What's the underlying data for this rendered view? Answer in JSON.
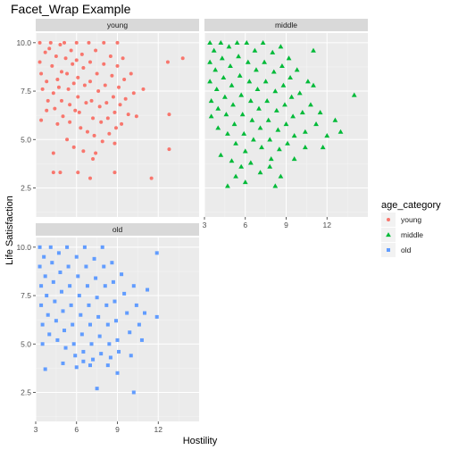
{
  "chart_data": {
    "type": "scatter",
    "title": "Facet_Wrap Example",
    "xlabel": "Hostility",
    "ylabel": "Life Satisfaction",
    "xlim": [
      3,
      15
    ],
    "ylim": [
      1,
      10.5
    ],
    "x_ticks": [
      3,
      6,
      9,
      12
    ],
    "y_ticks": [
      2.5,
      5.0,
      7.5,
      10.0
    ],
    "y_tick_labels": [
      "2.5",
      "5.0",
      "7.5",
      "10.0"
    ],
    "grid": true,
    "legend": {
      "title": "age_category",
      "placement": "right",
      "entries": [
        {
          "name": "young",
          "color": "#F8766D",
          "shape": "circle"
        },
        {
          "name": "middle",
          "color": "#00BA38",
          "shape": "triangle"
        },
        {
          "name": "old",
          "color": "#619CFF",
          "shape": "square"
        }
      ]
    },
    "facets": [
      {
        "name": "young",
        "color": "#F8766D",
        "shape": "circle",
        "points": [
          [
            3.3,
            10.0
          ],
          [
            3.3,
            9.0
          ],
          [
            3.4,
            8.4
          ],
          [
            3.5,
            7.6
          ],
          [
            3.4,
            6.0
          ],
          [
            3.7,
            9.5
          ],
          [
            3.8,
            8.0
          ],
          [
            3.9,
            7.0
          ],
          [
            4.0,
            9.7
          ],
          [
            4.1,
            10.0
          ],
          [
            4.2,
            8.8
          ],
          [
            4.3,
            7.4
          ],
          [
            4.4,
            6.6
          ],
          [
            4.5,
            9.3
          ],
          [
            4.6,
            8.1
          ],
          [
            4.7,
            7.7
          ],
          [
            4.8,
            9.9
          ],
          [
            4.9,
            8.5
          ],
          [
            4.9,
            7.0
          ],
          [
            5.0,
            6.2
          ],
          [
            5.1,
            10.0
          ],
          [
            5.2,
            9.2
          ],
          [
            5.3,
            8.4
          ],
          [
            5.4,
            7.6
          ],
          [
            5.5,
            6.8
          ],
          [
            5.5,
            5.9
          ],
          [
            5.6,
            9.6
          ],
          [
            5.7,
            8.9
          ],
          [
            5.8,
            7.9
          ],
          [
            5.9,
            6.5
          ],
          [
            6.0,
            10.0
          ],
          [
            6.0,
            9.1
          ],
          [
            6.1,
            8.2
          ],
          [
            6.1,
            7.2
          ],
          [
            6.2,
            6.4
          ],
          [
            6.3,
            5.6
          ],
          [
            6.4,
            9.4
          ],
          [
            6.5,
            8.7
          ],
          [
            6.6,
            7.8
          ],
          [
            6.7,
            6.9
          ],
          [
            6.8,
            5.4
          ],
          [
            6.9,
            10.0
          ],
          [
            7.0,
            9.0
          ],
          [
            7.0,
            8.0
          ],
          [
            7.1,
            7.0
          ],
          [
            7.2,
            6.1
          ],
          [
            7.3,
            5.2
          ],
          [
            7.4,
            9.6
          ],
          [
            7.5,
            8.4
          ],
          [
            7.6,
            7.5
          ],
          [
            7.7,
            6.7
          ],
          [
            7.8,
            5.9
          ],
          [
            7.9,
            4.9
          ],
          [
            8.0,
            10.0
          ],
          [
            8.0,
            8.9
          ],
          [
            8.1,
            7.8
          ],
          [
            8.2,
            6.9
          ],
          [
            8.3,
            6.1
          ],
          [
            8.4,
            5.3
          ],
          [
            8.5,
            9.3
          ],
          [
            8.6,
            8.3
          ],
          [
            8.7,
            7.2
          ],
          [
            8.8,
            6.4
          ],
          [
            8.9,
            5.6
          ],
          [
            9.0,
            10.0
          ],
          [
            9.0,
            8.8
          ],
          [
            9.1,
            7.7
          ],
          [
            9.2,
            6.8
          ],
          [
            9.3,
            5.8
          ],
          [
            9.4,
            9.2
          ],
          [
            9.5,
            8.1
          ],
          [
            9.6,
            7.1
          ],
          [
            9.8,
            6.3
          ],
          [
            10.0,
            8.4
          ],
          [
            10.2,
            7.4
          ],
          [
            10.4,
            6.2
          ],
          [
            10.9,
            7.6
          ],
          [
            12.7,
            9.0
          ],
          [
            13.8,
            9.2
          ],
          [
            3.8,
            6.5
          ],
          [
            4.6,
            5.8
          ],
          [
            5.3,
            5.0
          ],
          [
            6.5,
            4.4
          ],
          [
            7.2,
            4.0
          ],
          [
            4.3,
            4.3
          ],
          [
            5.8,
            4.6
          ],
          [
            7.4,
            4.3
          ],
          [
            8.8,
            4.8
          ],
          [
            4.3,
            3.3
          ],
          [
            4.8,
            3.3
          ],
          [
            6.1,
            3.3
          ],
          [
            7.0,
            3.0
          ],
          [
            8.8,
            3.3
          ],
          [
            11.5,
            3.0
          ],
          [
            12.8,
            4.5
          ],
          [
            12.8,
            6.3
          ]
        ]
      },
      {
        "name": "middle",
        "color": "#00BA38",
        "shape": "triangle",
        "points": [
          [
            3.4,
            10.0
          ],
          [
            3.4,
            9.0
          ],
          [
            3.4,
            8.0
          ],
          [
            3.5,
            7.0
          ],
          [
            3.5,
            6.2
          ],
          [
            3.7,
            9.6
          ],
          [
            3.8,
            8.6
          ],
          [
            3.9,
            7.6
          ],
          [
            4.0,
            6.6
          ],
          [
            4.0,
            5.6
          ],
          [
            4.2,
            10.0
          ],
          [
            4.3,
            9.2
          ],
          [
            4.4,
            8.2
          ],
          [
            4.5,
            7.2
          ],
          [
            4.6,
            6.3
          ],
          [
            4.7,
            5.3
          ],
          [
            4.8,
            9.8
          ],
          [
            4.9,
            8.8
          ],
          [
            5.0,
            7.8
          ],
          [
            5.1,
            6.8
          ],
          [
            5.2,
            5.8
          ],
          [
            5.3,
            4.8
          ],
          [
            5.4,
            10.0
          ],
          [
            5.5,
            9.3
          ],
          [
            5.6,
            8.3
          ],
          [
            5.7,
            7.3
          ],
          [
            5.8,
            6.3
          ],
          [
            5.9,
            5.3
          ],
          [
            6.0,
            4.4
          ],
          [
            6.1,
            10.0
          ],
          [
            6.2,
            9.0
          ],
          [
            6.3,
            8.0
          ],
          [
            6.4,
            7.0
          ],
          [
            6.5,
            6.0
          ],
          [
            6.6,
            5.0
          ],
          [
            6.7,
            9.6
          ],
          [
            6.8,
            8.6
          ],
          [
            6.9,
            7.6
          ],
          [
            7.0,
            6.6
          ],
          [
            7.1,
            5.6
          ],
          [
            7.2,
            4.6
          ],
          [
            7.3,
            10.0
          ],
          [
            7.4,
            9.0
          ],
          [
            7.5,
            8.0
          ],
          [
            7.6,
            7.0
          ],
          [
            7.7,
            6.0
          ],
          [
            7.8,
            5.0
          ],
          [
            7.9,
            4.0
          ],
          [
            8.0,
            9.5
          ],
          [
            8.1,
            8.5
          ],
          [
            8.2,
            7.5
          ],
          [
            8.3,
            6.5
          ],
          [
            8.4,
            5.5
          ],
          [
            8.5,
            4.5
          ],
          [
            8.6,
            9.8
          ],
          [
            8.7,
            8.8
          ],
          [
            8.8,
            7.8
          ],
          [
            8.9,
            6.8
          ],
          [
            9.0,
            5.8
          ],
          [
            9.1,
            4.8
          ],
          [
            9.2,
            9.2
          ],
          [
            9.3,
            8.2
          ],
          [
            9.4,
            7.2
          ],
          [
            9.5,
            6.2
          ],
          [
            9.6,
            5.2
          ],
          [
            9.8,
            8.6
          ],
          [
            10.0,
            7.4
          ],
          [
            10.2,
            6.4
          ],
          [
            10.4,
            5.4
          ],
          [
            10.6,
            8.0
          ],
          [
            10.8,
            6.8
          ],
          [
            11.0,
            7.8
          ],
          [
            11.2,
            5.8
          ],
          [
            11.5,
            6.4
          ],
          [
            12.0,
            5.2
          ],
          [
            12.6,
            6.0
          ],
          [
            13.0,
            5.4
          ],
          [
            14.0,
            7.3
          ],
          [
            11.0,
            9.6
          ],
          [
            9.6,
            4.0
          ],
          [
            10.4,
            4.6
          ],
          [
            11.7,
            4.6
          ],
          [
            4.2,
            4.2
          ],
          [
            5.0,
            3.9
          ],
          [
            5.7,
            3.6
          ],
          [
            6.4,
            3.8
          ],
          [
            7.1,
            3.3
          ],
          [
            7.8,
            3.6
          ],
          [
            5.3,
            3.1
          ],
          [
            8.6,
            3.1
          ],
          [
            4.7,
            2.6
          ],
          [
            6.0,
            2.8
          ],
          [
            8.2,
            2.6
          ]
        ]
      },
      {
        "name": "old",
        "color": "#619CFF",
        "shape": "square",
        "points": [
          [
            3.3,
            10.0
          ],
          [
            3.3,
            9.0
          ],
          [
            3.4,
            8.0
          ],
          [
            3.4,
            7.0
          ],
          [
            3.5,
            6.0
          ],
          [
            3.5,
            5.0
          ],
          [
            3.6,
            9.5
          ],
          [
            3.7,
            8.5
          ],
          [
            3.8,
            7.5
          ],
          [
            3.9,
            6.5
          ],
          [
            4.0,
            5.5
          ],
          [
            4.1,
            10.0
          ],
          [
            4.2,
            9.2
          ],
          [
            4.3,
            8.2
          ],
          [
            4.4,
            7.2
          ],
          [
            4.5,
            6.2
          ],
          [
            4.6,
            5.2
          ],
          [
            4.7,
            9.7
          ],
          [
            4.8,
            8.7
          ],
          [
            4.9,
            7.7
          ],
          [
            5.0,
            6.7
          ],
          [
            5.1,
            5.7
          ],
          [
            5.2,
            4.8
          ],
          [
            5.3,
            10.0
          ],
          [
            5.4,
            9.0
          ],
          [
            5.5,
            8.0
          ],
          [
            5.6,
            7.0
          ],
          [
            5.7,
            6.0
          ],
          [
            5.8,
            5.0
          ],
          [
            5.9,
            4.4
          ],
          [
            6.0,
            9.5
          ],
          [
            6.1,
            8.5
          ],
          [
            6.2,
            7.5
          ],
          [
            6.3,
            6.5
          ],
          [
            6.4,
            5.5
          ],
          [
            6.5,
            4.6
          ],
          [
            6.6,
            10.0
          ],
          [
            6.7,
            9.0
          ],
          [
            6.8,
            8.0
          ],
          [
            6.9,
            7.0
          ],
          [
            7.0,
            6.0
          ],
          [
            7.1,
            5.0
          ],
          [
            7.2,
            4.2
          ],
          [
            7.3,
            9.4
          ],
          [
            7.4,
            8.4
          ],
          [
            7.5,
            7.4
          ],
          [
            7.6,
            6.4
          ],
          [
            7.7,
            5.4
          ],
          [
            7.8,
            4.5
          ],
          [
            7.9,
            10.0
          ],
          [
            8.0,
            9.0
          ],
          [
            8.1,
            8.0
          ],
          [
            8.2,
            7.0
          ],
          [
            8.3,
            6.0
          ],
          [
            8.4,
            5.0
          ],
          [
            8.5,
            4.3
          ],
          [
            8.6,
            9.2
          ],
          [
            8.7,
            8.2
          ],
          [
            8.8,
            7.2
          ],
          [
            8.9,
            6.2
          ],
          [
            9.0,
            5.2
          ],
          [
            9.1,
            4.6
          ],
          [
            9.3,
            8.6
          ],
          [
            9.5,
            7.6
          ],
          [
            9.7,
            6.6
          ],
          [
            9.9,
            5.6
          ],
          [
            10.0,
            4.4
          ],
          [
            10.2,
            8.0
          ],
          [
            10.4,
            7.0
          ],
          [
            10.6,
            6.0
          ],
          [
            10.8,
            5.2
          ],
          [
            11.0,
            6.6
          ],
          [
            11.2,
            7.8
          ],
          [
            11.9,
            9.7
          ],
          [
            11.9,
            6.4
          ],
          [
            3.7,
            3.7
          ],
          [
            5.0,
            4.0
          ],
          [
            6.0,
            3.8
          ],
          [
            7.0,
            3.9
          ],
          [
            7.5,
            2.7
          ],
          [
            9.0,
            3.5
          ],
          [
            10.2,
            2.5
          ],
          [
            6.5,
            4.1
          ],
          [
            8.3,
            3.9
          ]
        ]
      }
    ]
  }
}
